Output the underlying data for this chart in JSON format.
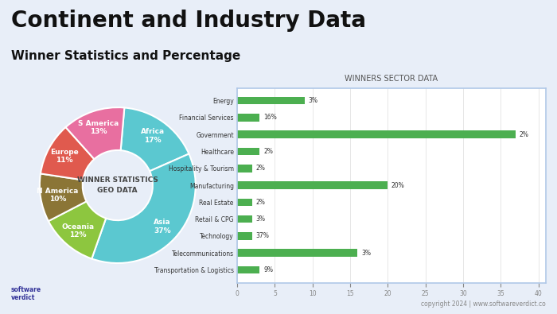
{
  "title": "Continent and Industry Data",
  "subtitle": "Winner Statistics and Percentage",
  "background_color": "#e8eef8",
  "pie": {
    "labels": [
      "Africa",
      "Asia",
      "Oceania",
      "N America",
      "Europe",
      "S America"
    ],
    "values": [
      17,
      37,
      12,
      10,
      11,
      13
    ],
    "colors": [
      "#5bc8d0",
      "#5bc8d0",
      "#8dc63f",
      "#8b7536",
      "#e05a4e",
      "#e86fa0"
    ],
    "center_text_line1": "WINNER STATISTICS",
    "center_text_line2": "GEO DATA",
    "startangle": 85
  },
  "bar": {
    "title": "WINNERS SECTOR DATA",
    "categories": [
      "Transportation & Logistics",
      "Telecommunications",
      "Technology",
      "Retail & CPG",
      "Real Estate",
      "Manufacturing",
      "Hospitality & Tourism",
      "Healthcare",
      "Government",
      "Financial Services",
      "Energy"
    ],
    "values": [
      9,
      3,
      37,
      3,
      2,
      20,
      2,
      2,
      2,
      16,
      3
    ],
    "bar_color": "#4caf50",
    "xlim": [
      0,
      41
    ],
    "xticks": [
      0,
      5,
      10,
      15,
      20,
      25,
      30,
      35,
      40
    ]
  },
  "footer_text": "copyright 2024 | www.softwareverdict.co",
  "footer_link_color": "#4a90d9"
}
